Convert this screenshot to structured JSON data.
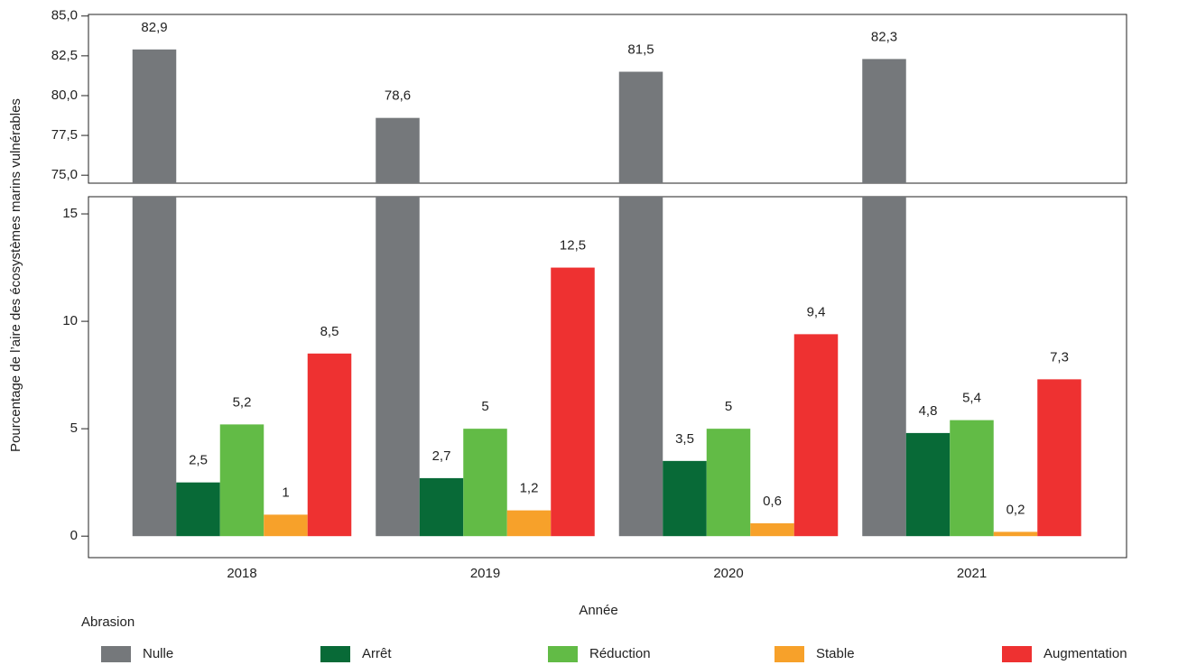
{
  "chart_data": {
    "type": "bar",
    "x_label": "Année",
    "y_label": "Pourcentage de l’aire des écosystèmes marins vulnérables",
    "legend_title": "Abrasion",
    "legend": "bottom",
    "categories": [
      "2018",
      "2019",
      "2020",
      "2021"
    ],
    "series": [
      {
        "name": "Nulle",
        "color": "#75787b",
        "values": [
          82.9,
          78.6,
          81.5,
          82.3
        ],
        "value_labels": [
          "82,9",
          "78,6",
          "81,5",
          "82,3"
        ],
        "panel": "upper"
      },
      {
        "name": "Arrêt",
        "color": "#086a37",
        "values": [
          2.5,
          2.7,
          3.5,
          4.8
        ],
        "value_labels": [
          "2,5",
          "2,7",
          "3,5",
          "4,8"
        ]
      },
      {
        "name": "Réduction",
        "color": "#62bb46",
        "values": [
          5.2,
          5,
          5,
          5.4
        ],
        "value_labels": [
          "5,2",
          "5",
          "5",
          "5,4"
        ]
      },
      {
        "name": "Stable",
        "color": "#f7a12a",
        "values": [
          1,
          1.2,
          0.6,
          0.2
        ],
        "value_labels": [
          "1",
          "1,2",
          "0,6",
          "0,2"
        ]
      },
      {
        "name": "Augmentation",
        "color": "#ee3131",
        "values": [
          8.5,
          12.5,
          9.4,
          7.3
        ],
        "value_labels": [
          "8,5",
          "12,5",
          "9,4",
          "7,3"
        ]
      }
    ],
    "ylim": [
      -1,
      15.8
    ],
    "yticks": [
      0,
      5,
      10,
      15
    ],
    "ylim_upper": [
      74.5,
      85.1
    ],
    "yticks_upper": [
      {
        "value": 75,
        "label": "75,0"
      },
      {
        "value": 77.5,
        "label": "77,5"
      },
      {
        "value": 80,
        "label": "80,0"
      },
      {
        "value": 82.5,
        "label": "82,5"
      },
      {
        "value": 85,
        "label": "85,0"
      }
    ],
    "grid": false
  }
}
